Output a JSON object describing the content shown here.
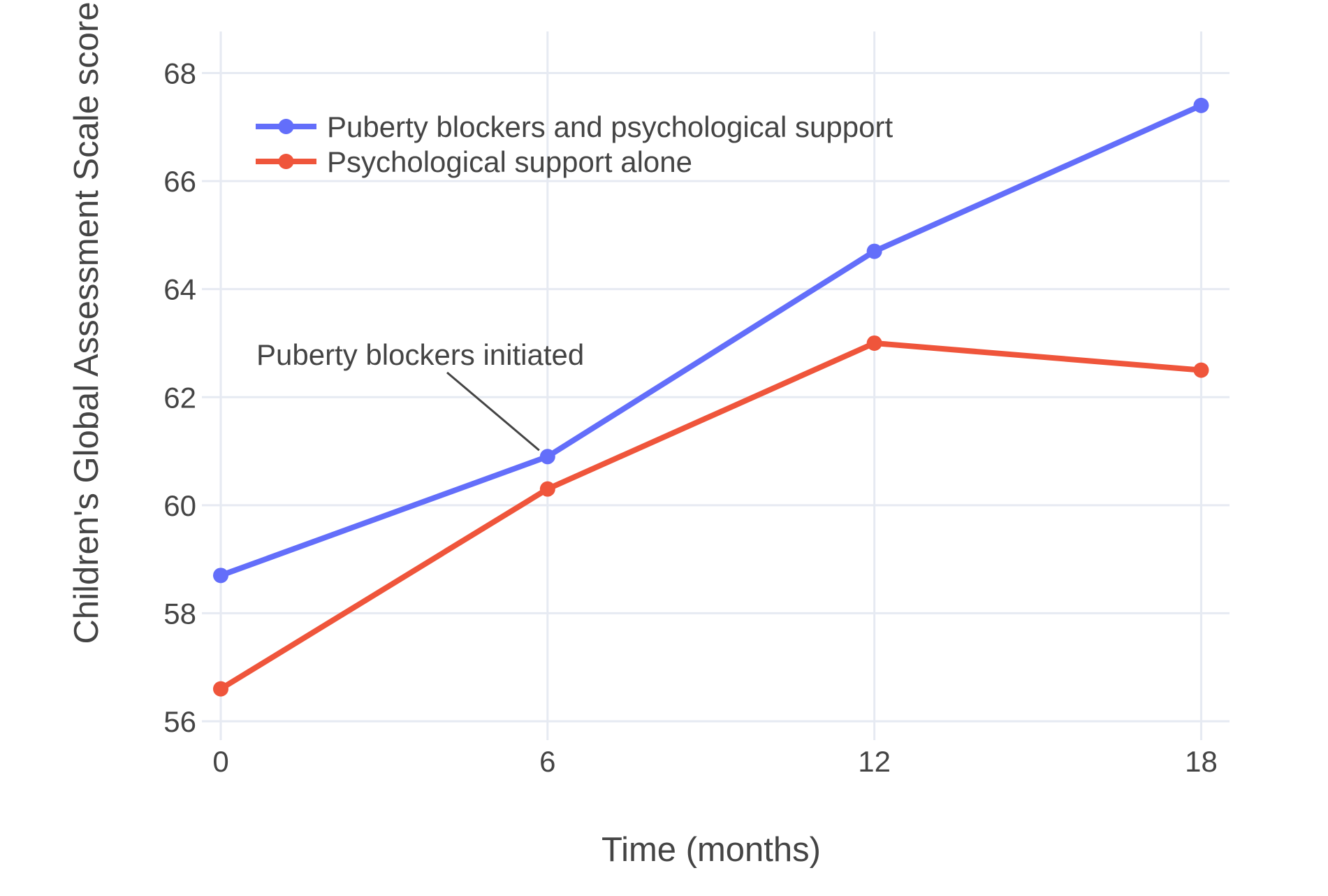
{
  "chart_data": {
    "type": "line",
    "x": [
      0,
      6,
      12,
      18
    ],
    "series": [
      {
        "name": "Puberty blockers and psychological support",
        "values": [
          58.7,
          60.9,
          64.7,
          67.4
        ],
        "color": "#636EFA"
      },
      {
        "name": "Psychological support alone",
        "values": [
          56.6,
          60.3,
          63.0,
          62.5
        ],
        "color": "#EF553B"
      }
    ],
    "title": "",
    "xlabel": "Time (months)",
    "ylabel": "Children's Global Assessment Scale score",
    "x_ticks": [
      0,
      6,
      12,
      18
    ],
    "y_ticks": [
      56,
      58,
      60,
      62,
      64,
      66,
      68
    ],
    "x_range": [
      0,
      18.52
    ],
    "y_range": [
      56,
      68.77
    ],
    "grid": true,
    "legend_position": "inside-top-left",
    "annotation": {
      "text": "Puberty blockers initiated",
      "target_x": 6,
      "target_y": 60.9
    }
  },
  "colors": {
    "background": "#ffffff",
    "grid": "#E6EAF2",
    "text": "#444444",
    "annotation_line": "#444444",
    "series_blue": "#636EFA",
    "series_red": "#EF553B"
  }
}
